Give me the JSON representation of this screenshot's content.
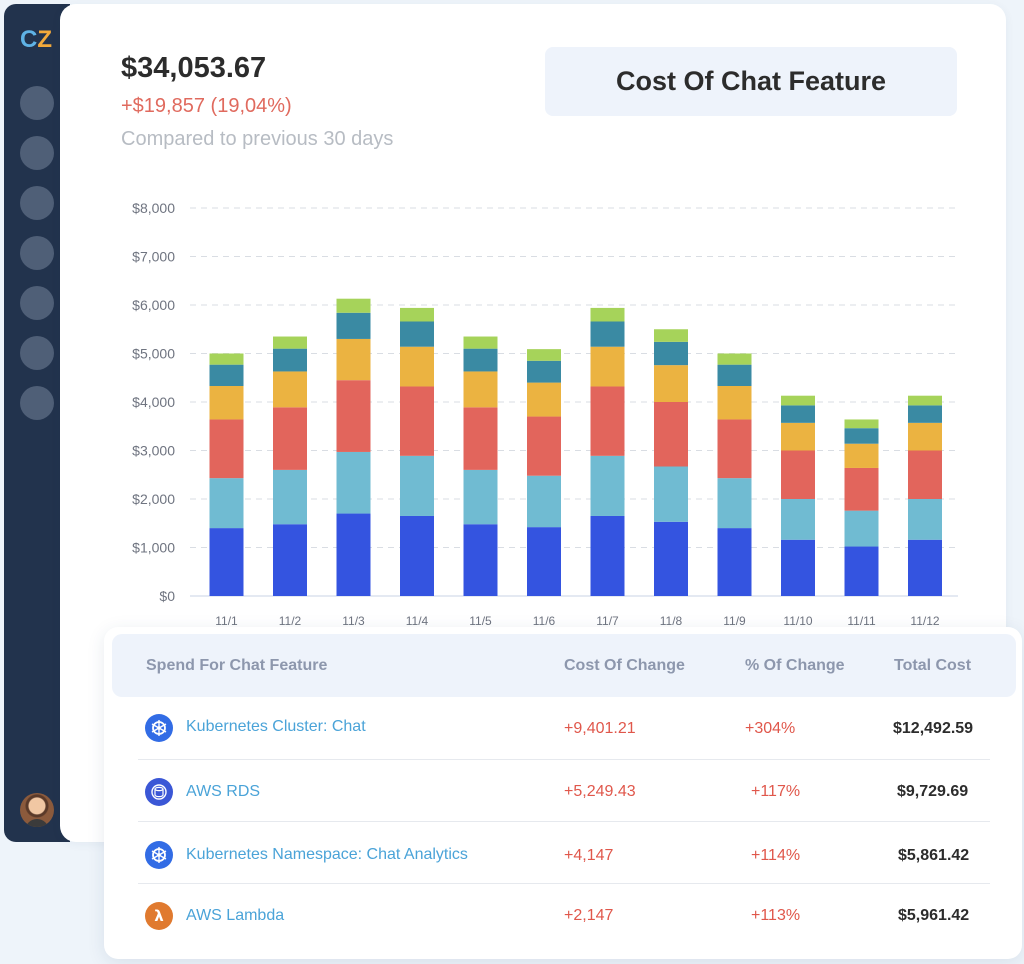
{
  "app": {
    "logo_c": "C",
    "logo_z": "Z"
  },
  "summary": {
    "total": "$34,053.67",
    "delta": "+$19,857 (19,04%)",
    "compare": "Compared to previous 30 days"
  },
  "title": "Cost Of Chat Feature",
  "colors": {
    "blue": "#3454e0",
    "lightblue": "#70bbd2",
    "red": "#e2655c",
    "yellow": "#ebb341",
    "teal": "#3a8aa3",
    "green": "#a6d35a"
  },
  "chart_data": {
    "type": "bar",
    "stacked": true,
    "categories": [
      "11/1",
      "11/2",
      "11/3",
      "11/4",
      "11/5",
      "11/6",
      "11/7",
      "11/8",
      "11/9",
      "11/10",
      "11/11",
      "11/12"
    ],
    "series": [
      {
        "color": "#3454e0",
        "values": [
          1400,
          1480,
          1700,
          1650,
          1480,
          1420,
          1650,
          1530,
          1400,
          1160,
          1020,
          1160
        ]
      },
      {
        "color": "#70bbd2",
        "values": [
          1030,
          1120,
          1270,
          1240,
          1120,
          1060,
          1240,
          1140,
          1030,
          840,
          740,
          840
        ]
      },
      {
        "color": "#e2655c",
        "values": [
          1210,
          1290,
          1480,
          1430,
          1290,
          1220,
          1430,
          1330,
          1210,
          1000,
          880,
          1000
        ]
      },
      {
        "color": "#ebb341",
        "values": [
          690,
          740,
          850,
          820,
          740,
          700,
          820,
          760,
          690,
          570,
          500,
          570
        ]
      },
      {
        "color": "#3a8aa3",
        "values": [
          440,
          470,
          540,
          520,
          470,
          450,
          520,
          480,
          440,
          360,
          320,
          360
        ]
      },
      {
        "color": "#a6d35a",
        "values": [
          230,
          250,
          290,
          280,
          250,
          240,
          280,
          260,
          230,
          200,
          180,
          200
        ]
      }
    ],
    "yticks": [
      "$0",
      "$1,000",
      "$2,000",
      "$3,000",
      "$4,000",
      "$5,000",
      "$6,000",
      "$7,000",
      "$8,000"
    ],
    "ylim": [
      0,
      8000
    ],
    "grid": true
  },
  "table": {
    "headers": [
      "Spend For Chat Feature",
      "Cost Of Change",
      "% Of Change",
      "Total Cost"
    ],
    "rows": [
      {
        "name": "Kubernetes Cluster: Chat",
        "icon": "kubernetes-icon",
        "change": "+9,401.21",
        "pct": "+304%",
        "total": "$12,492.59"
      },
      {
        "name": "AWS RDS",
        "icon": "aws-rds-icon",
        "change": "+5,249.43",
        "pct": "+117%",
        "total": "$9,729.69"
      },
      {
        "name": "Kubernetes Namespace: Chat Analytics",
        "icon": "kubernetes-icon",
        "change": "+4,147",
        "pct": "+114%",
        "total": "$5,861.42"
      },
      {
        "name": "AWS Lambda",
        "icon": "aws-lambda-icon",
        "change": "+2,147",
        "pct": "+113%",
        "total": "$5,961.42"
      }
    ]
  }
}
